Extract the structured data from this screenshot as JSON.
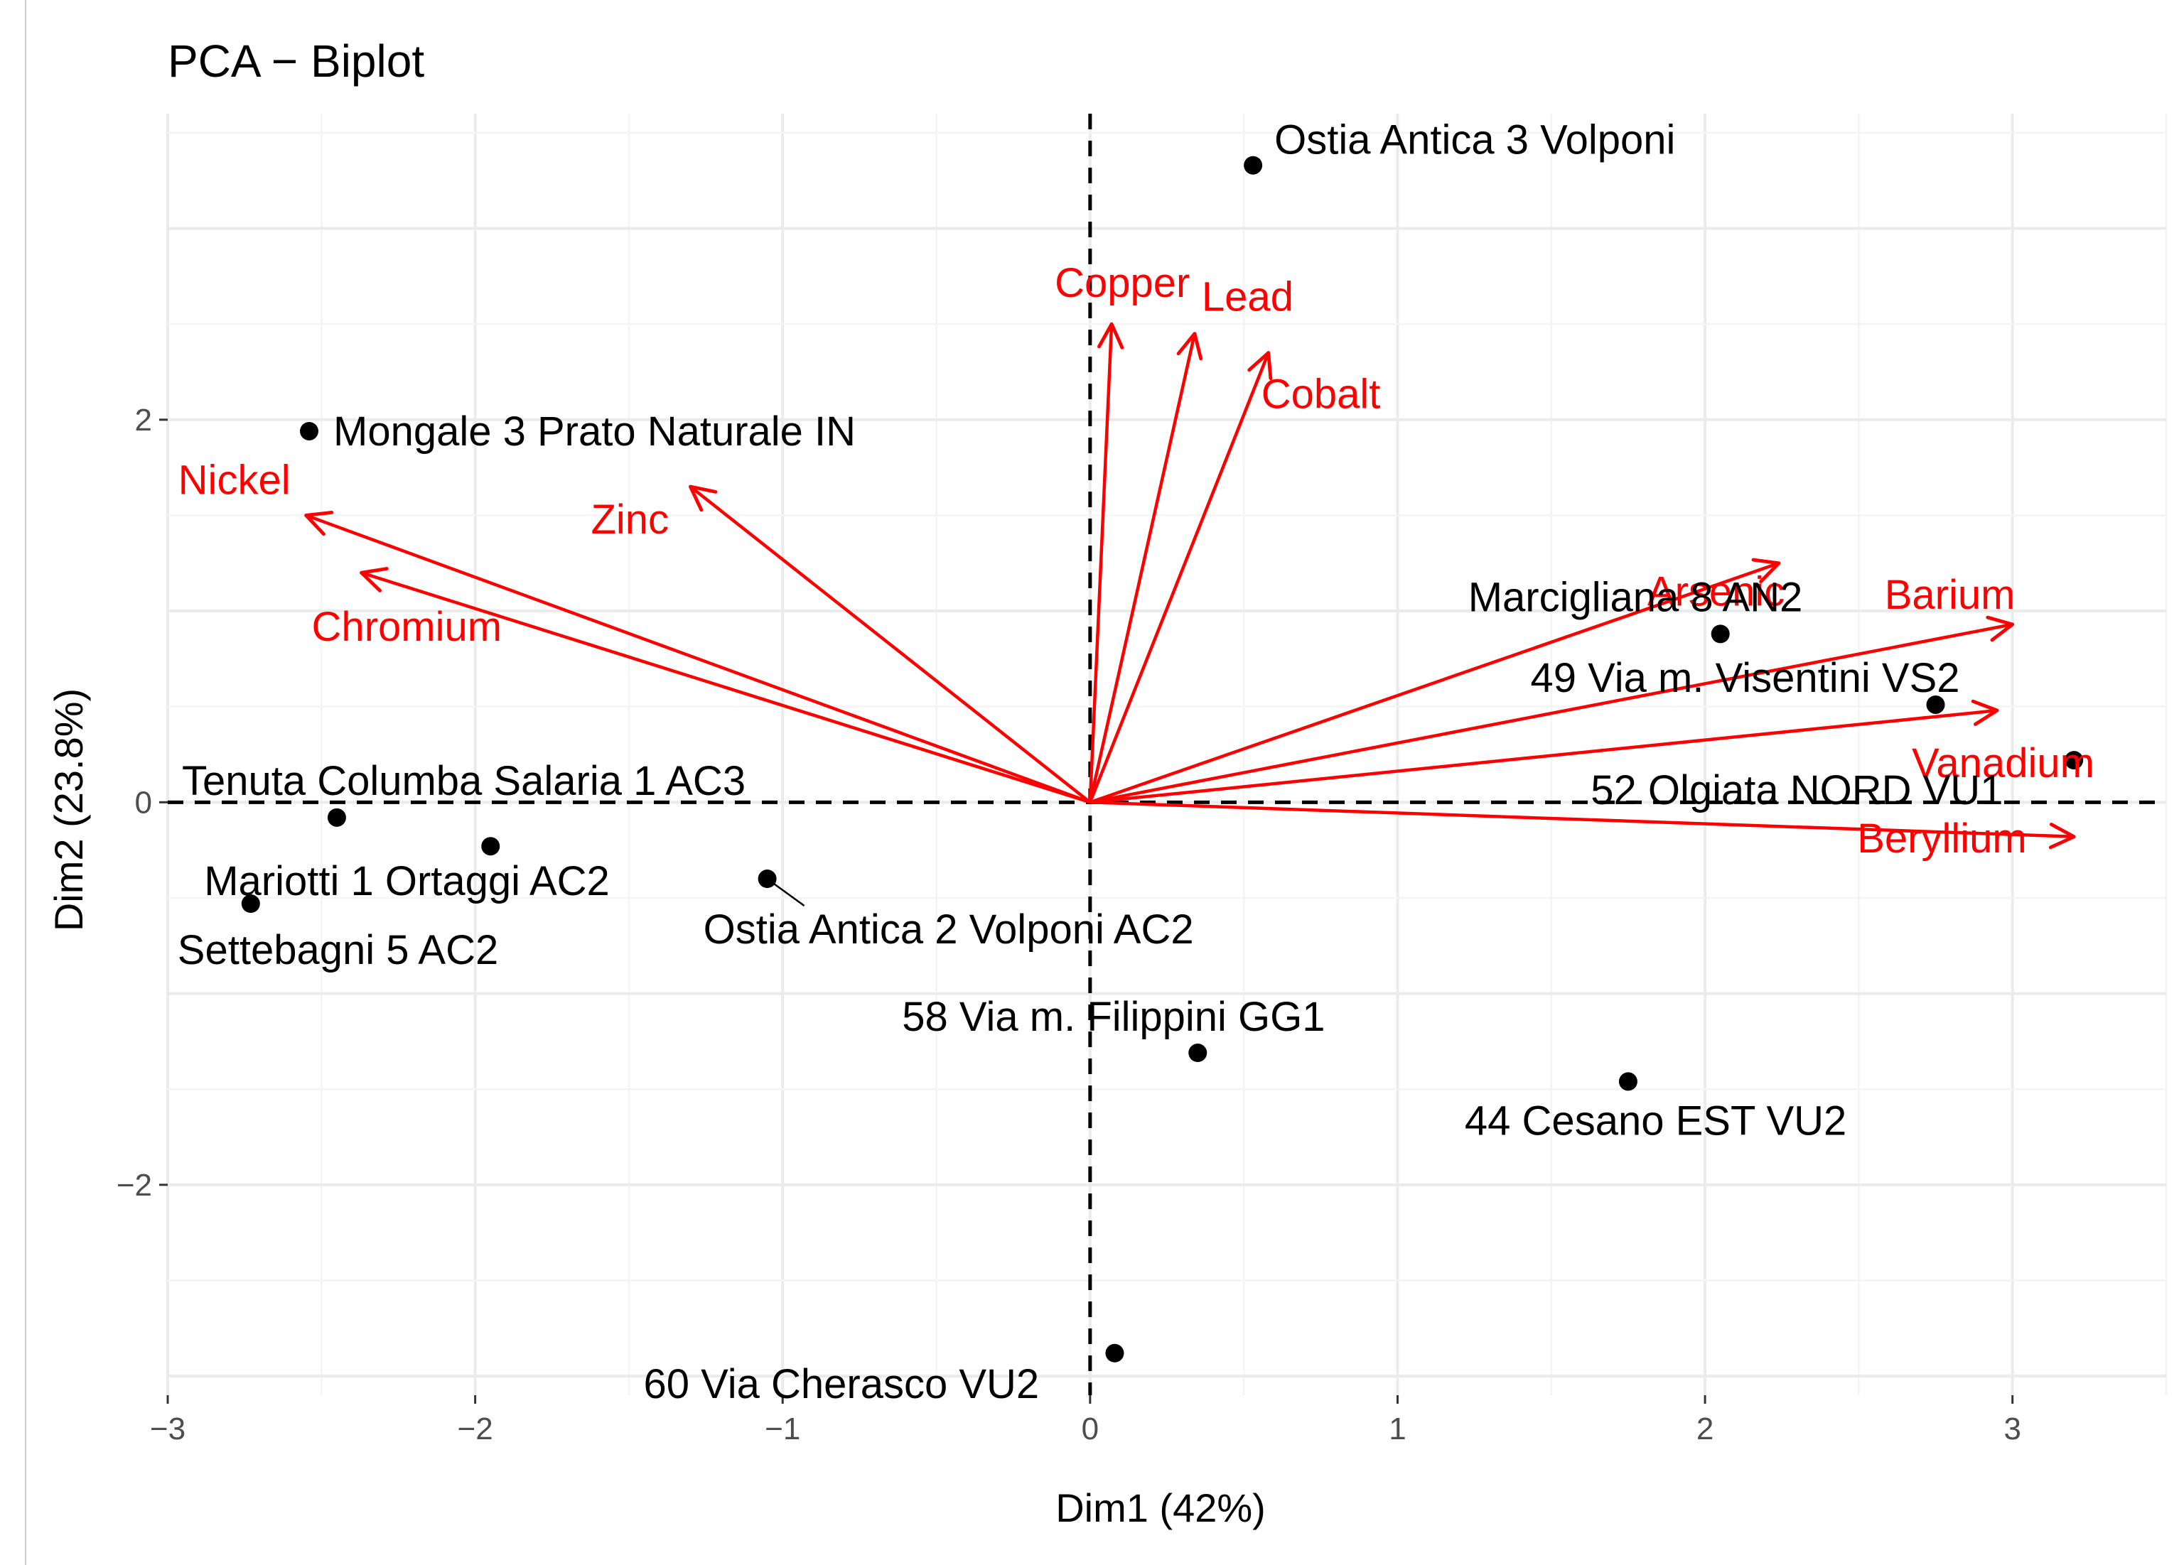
{
  "chart_data": {
    "type": "scatter",
    "title": "PCA − Biplot",
    "xlabel": "Dim1 (42%)",
    "ylabel": "Dim2 (23.8%)",
    "xlim": [
      -3.0,
      3.5
    ],
    "ylim": [
      -3.1,
      3.6
    ],
    "x_ticks": [
      {
        "value": -3,
        "label": "−3"
      },
      {
        "value": -2,
        "label": "−2"
      },
      {
        "value": -1,
        "label": "−1"
      },
      {
        "value": 0,
        "label": "0"
      },
      {
        "value": 1,
        "label": "1"
      },
      {
        "value": 2,
        "label": "2"
      },
      {
        "value": 3,
        "label": "3"
      }
    ],
    "y_ticks": [
      {
        "value": -2,
        "label": "−2"
      },
      {
        "value": 0,
        "label": "0"
      },
      {
        "value": 2,
        "label": "2"
      }
    ],
    "grid": true,
    "reference_lines": {
      "x": 0,
      "y": 0
    },
    "point_color": "#000000",
    "variable_color": "#ff0000",
    "points": [
      {
        "label": "Ostia Antica 3 Volponi",
        "x": 0.53,
        "y": 3.33
      },
      {
        "label": "Mongale 3 Prato Naturale IN",
        "x": -2.54,
        "y": 1.94
      },
      {
        "label": "Marcigliana 8 AN2",
        "x": 2.05,
        "y": 0.88
      },
      {
        "label": "49 Via m. Visentini VS2",
        "x": 2.75,
        "y": 0.51
      },
      {
        "label": "52 Olgiata NORD VU1",
        "x": 3.2,
        "y": 0.22
      },
      {
        "label": "Tenuta Columba Salaria 1 AC3",
        "x": -2.45,
        "y": -0.08
      },
      {
        "label": "Mariotti 1 Ortaggi AC2",
        "x": -1.95,
        "y": -0.23
      },
      {
        "label": "Settebagni 5 AC2",
        "x": -2.73,
        "y": -0.53
      },
      {
        "label": "Ostia Antica 2 Volponi AC2",
        "x": -1.05,
        "y": -0.4
      },
      {
        "label": "58 Via m. Filippini GG1",
        "x": 0.35,
        "y": -1.31
      },
      {
        "label": "44 Cesano EST VU2",
        "x": 1.75,
        "y": -1.46
      },
      {
        "label": "60 Via Cherasco VU2",
        "x": 0.08,
        "y": -2.88
      }
    ],
    "variables": [
      {
        "label": "Copper",
        "x": 0.07,
        "y": 2.5
      },
      {
        "label": "Lead",
        "x": 0.34,
        "y": 2.45
      },
      {
        "label": "Cobalt",
        "x": 0.58,
        "y": 2.35
      },
      {
        "label": "Nickel",
        "x": -2.55,
        "y": 1.5
      },
      {
        "label": "Zinc",
        "x": -1.3,
        "y": 1.65
      },
      {
        "label": "Chromium",
        "x": -2.37,
        "y": 1.2
      },
      {
        "label": "Arsenic",
        "x": 2.24,
        "y": 1.25
      },
      {
        "label": "Barium",
        "x": 3.0,
        "y": 0.93
      },
      {
        "label": "Vanadium",
        "x": 2.95,
        "y": 0.48
      },
      {
        "label": "Beryllium",
        "x": 3.2,
        "y": -0.18
      }
    ]
  }
}
